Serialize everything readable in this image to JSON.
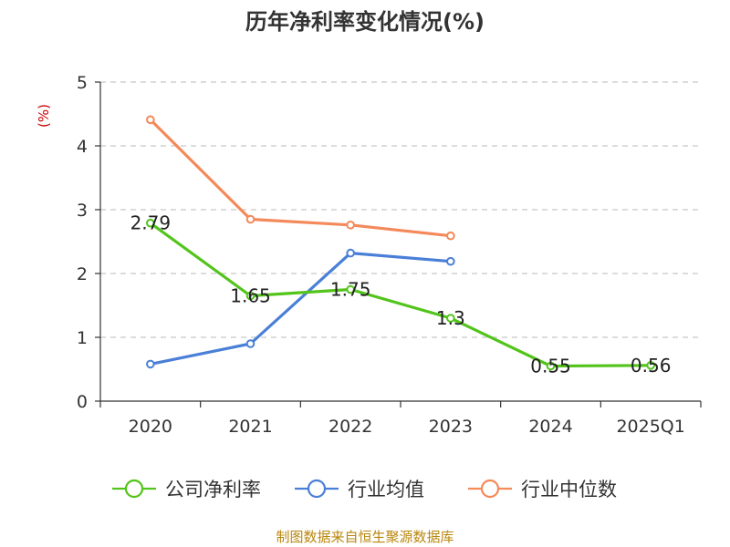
{
  "chart_data": {
    "type": "line",
    "title": "历年净利率变化情况(%)",
    "ylabel": "(%)",
    "categories": [
      "2020",
      "2021",
      "2022",
      "2023",
      "2024",
      "2025Q1"
    ],
    "ylim": [
      0,
      5
    ],
    "yticks": [
      "0",
      "1",
      "2",
      "3",
      "4",
      "5"
    ],
    "grid": "horizontal-dashed",
    "legend_position": "bottom",
    "series": [
      {
        "name": "公司净利率",
        "color": "#52c41a",
        "values": [
          2.79,
          1.65,
          1.75,
          1.3,
          0.55,
          0.56
        ],
        "labels": [
          "2.79",
          "1.65",
          "1.75",
          "1.3",
          "0.55",
          "0.56"
        ]
      },
      {
        "name": "行业均值",
        "color": "#4a7fd8",
        "values": [
          0.58,
          0.9,
          2.32,
          2.19,
          null,
          null
        ]
      },
      {
        "name": "行业中位数",
        "color": "#f4895a",
        "values": [
          4.41,
          2.85,
          2.76,
          2.59,
          null,
          null
        ]
      }
    ]
  },
  "footer": {
    "source": "制图数据来自恒生聚源数据库"
  }
}
